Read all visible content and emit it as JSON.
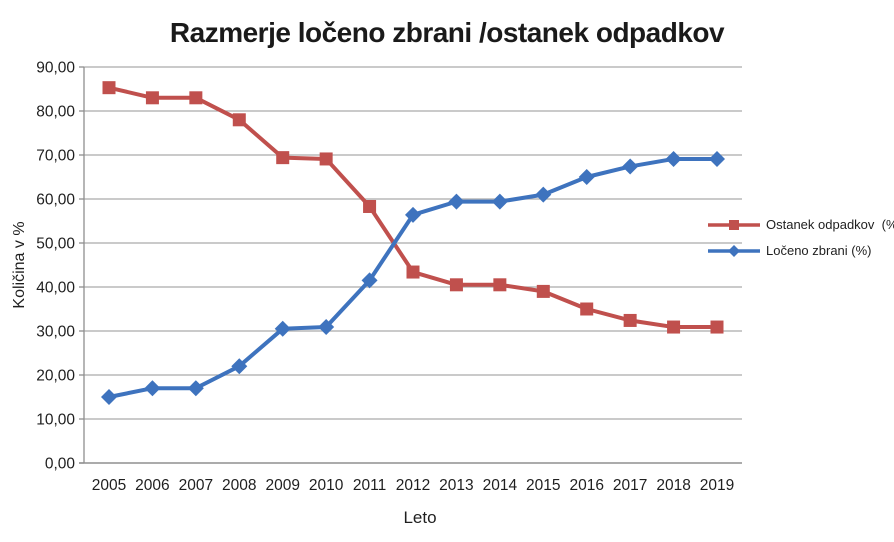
{
  "chart": {
    "title": "Razmerje ločeno zbrani /ostanek odpadkov",
    "x_axis_label": "Leto",
    "y_axis_label": "Količina v %"
  },
  "chart_data": {
    "type": "line",
    "title": "Razmerje ločeno zbrani /ostanek odpadkov",
    "xlabel": "Leto",
    "ylabel": "Količina v %",
    "categories": [
      "2005",
      "2006",
      "2007",
      "2008",
      "2009",
      "2010",
      "2011",
      "2012",
      "2013",
      "2014",
      "2015",
      "2016",
      "2017",
      "2018",
      "2019"
    ],
    "series": [
      {
        "name": "Ostanek odpadkov  (%)",
        "slug": "ostanek-odpadkov",
        "color": "#c0504d",
        "marker": "square",
        "values": [
          85.3,
          83.0,
          83.0,
          78.0,
          69.4,
          69.1,
          58.3,
          43.4,
          40.5,
          40.5,
          39.0,
          35.0,
          32.4,
          30.9,
          30.9
        ]
      },
      {
        "name": "Ločeno zbrani (%)",
        "slug": "loceno-zbrani",
        "color": "#3e73be",
        "marker": "diamond",
        "values": [
          15.0,
          17.0,
          17.0,
          22.0,
          30.5,
          30.9,
          41.5,
          56.4,
          59.4,
          59.4,
          61.0,
          65.0,
          67.4,
          69.1,
          69.1
        ]
      }
    ],
    "ylim": [
      0,
      90
    ],
    "y_tick_step": 10,
    "y_tick_labels": [
      "0,00",
      "10,00",
      "20,00",
      "30,00",
      "40,00",
      "50,00",
      "60,00",
      "70,00",
      "80,00",
      "90,00"
    ],
    "grid": true,
    "legend_position": "right",
    "grid_color": "#aaaaaa",
    "axis_color": "#8f8f8f",
    "text_color": "#1f1f1f"
  }
}
